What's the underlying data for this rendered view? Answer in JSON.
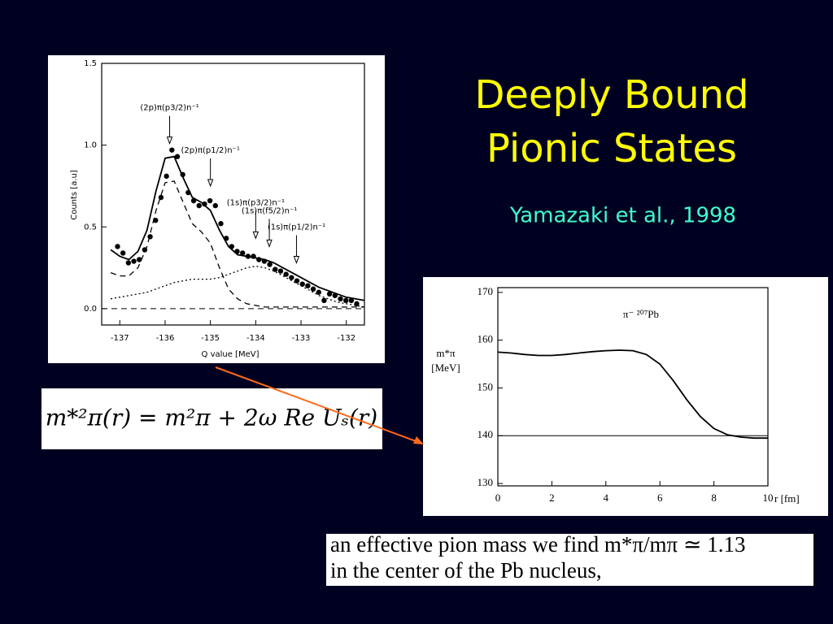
{
  "slide": {
    "title": [
      "Deeply Bound",
      "Pionic States"
    ],
    "subtitle": "Yamazaki et al., 1998"
  },
  "chart_data": [
    {
      "type": "line",
      "xlabel": "Q value [MeV]",
      "ylabel": "Counts [a.u]",
      "xlim": [
        -137.4,
        -131.6
      ],
      "ylim": [
        -0.1,
        1.5
      ],
      "xticks": [
        -137,
        -136,
        -135,
        -134,
        -133,
        -132
      ],
      "yticks": [
        {
          "value": 0,
          "label": "0.0"
        },
        0.5,
        {
          "value": 1,
          "label": "1.0"
        },
        1.5
      ],
      "hline": 0,
      "series": [
        {
          "kind": "points",
          "color": "#000000",
          "x": [
            -137.05,
            -136.93,
            -136.81,
            -136.69,
            -136.57,
            -136.45,
            -136.33,
            -136.21,
            -136.09,
            -135.97,
            -135.85,
            -135.73,
            -135.61,
            -135.49,
            -135.37,
            -135.25,
            -135.13,
            -135.01,
            -134.89,
            -134.77,
            -134.65,
            -134.53,
            -134.41,
            -134.29,
            -134.17,
            -134.05,
            -133.93,
            -133.81,
            -133.69,
            -133.57,
            -133.45,
            -133.33,
            -133.21,
            -133.09,
            -132.97,
            -132.85,
            -132.73,
            -132.61,
            -132.49,
            -132.37,
            -132.25,
            -132.13,
            -132.01,
            -131.89,
            -131.77
          ],
          "values": [
            0.38,
            0.34,
            0.28,
            0.29,
            0.3,
            0.36,
            0.44,
            0.54,
            0.68,
            0.81,
            0.97,
            0.93,
            0.82,
            0.71,
            0.66,
            0.63,
            0.64,
            0.66,
            0.63,
            0.52,
            0.43,
            0.38,
            0.35,
            0.34,
            0.32,
            0.32,
            0.3,
            0.29,
            0.27,
            0.24,
            0.23,
            0.21,
            0.19,
            0.17,
            0.15,
            0.14,
            0.12,
            0.1,
            0.05,
            0.09,
            0.08,
            0.06,
            0.05,
            0.05,
            0.03
          ]
        },
        {
          "kind": "solid",
          "color": "#000000",
          "x": [
            -137.2,
            -137.0,
            -136.8,
            -136.6,
            -136.4,
            -136.2,
            -136.0,
            -135.8,
            -135.6,
            -135.4,
            -135.2,
            -135.0,
            -134.8,
            -134.6,
            -134.4,
            -134.2,
            -134.0,
            -133.8,
            -133.6,
            -133.4,
            -133.2,
            -133.0,
            -132.8,
            -132.6,
            -132.4,
            -132.2,
            -132.0,
            -131.8,
            -131.6
          ],
          "values": [
            0.36,
            0.32,
            0.3,
            0.35,
            0.48,
            0.72,
            0.92,
            0.93,
            0.8,
            0.68,
            0.65,
            0.6,
            0.48,
            0.38,
            0.33,
            0.32,
            0.31,
            0.3,
            0.28,
            0.25,
            0.22,
            0.19,
            0.16,
            0.13,
            0.11,
            0.09,
            0.07,
            0.06,
            0.05
          ]
        },
        {
          "kind": "dashed",
          "color": "#000000",
          "x": [
            -137.2,
            -137.0,
            -136.8,
            -136.6,
            -136.4,
            -136.2,
            -136.0,
            -135.8,
            -135.6,
            -135.4,
            -135.2,
            -135.0,
            -134.8,
            -134.6,
            -134.4,
            -134.2,
            -134.0,
            -133.8,
            -133.6,
            -133.4,
            -133.2,
            -133.0,
            -132.8,
            -132.6,
            -132.4,
            -132.2,
            -132.0,
            -131.8,
            -131.6
          ],
          "values": [
            0.22,
            0.2,
            0.2,
            0.25,
            0.38,
            0.6,
            0.77,
            0.78,
            0.65,
            0.52,
            0.47,
            0.4,
            0.25,
            0.12,
            0.06,
            0.03,
            0.02,
            0.01,
            0.01,
            0.01,
            0.01,
            0.01,
            0.01,
            0.01,
            0.01,
            0.01,
            0.01,
            0.01,
            0.01
          ]
        },
        {
          "kind": "dotted",
          "color": "#000000",
          "x": [
            -137.2,
            -137.0,
            -136.8,
            -136.6,
            -136.4,
            -136.2,
            -136.0,
            -135.8,
            -135.6,
            -135.4,
            -135.2,
            -135.0,
            -134.8,
            -134.6,
            -134.4,
            -134.2,
            -134.0,
            -133.8,
            -133.6,
            -133.4,
            -133.2,
            -133.0,
            -132.8,
            -132.6,
            -132.4,
            -132.2,
            -132.0,
            -131.8,
            -131.6
          ],
          "values": [
            0.06,
            0.07,
            0.08,
            0.09,
            0.1,
            0.12,
            0.14,
            0.16,
            0.17,
            0.18,
            0.18,
            0.18,
            0.19,
            0.21,
            0.23,
            0.25,
            0.26,
            0.25,
            0.23,
            0.2,
            0.17,
            0.14,
            0.11,
            0.08,
            0.06,
            0.04,
            0.03,
            0.02,
            0.01
          ]
        }
      ],
      "annotations": [
        {
          "text": "(2p)π(p3/2)n⁻¹",
          "x": -135.9,
          "y": 1.0,
          "arrow": true
        },
        {
          "text": "(2p)π(p1/2)n⁻¹",
          "x": -135.0,
          "y": 0.74,
          "arrow": true
        },
        {
          "text": "(1s)π(p3/2)n⁻¹",
          "x": -134.0,
          "y": 0.42,
          "arrow": true
        },
        {
          "text": "(1s)π(f5/2)n⁻¹",
          "x": -133.7,
          "y": 0.37,
          "arrow": true
        },
        {
          "text": "(1s)π(p1/2)n⁻¹",
          "x": -133.1,
          "y": 0.27,
          "arrow": true
        }
      ]
    },
    {
      "type": "line",
      "xlabel": "r [fm]",
      "ylabel": [
        "m*π",
        "[MeV]"
      ],
      "xlim": [
        0,
        10
      ],
      "ylim": [
        129.5,
        171
      ],
      "xticks": [
        0,
        2,
        4,
        6,
        8,
        10
      ],
      "yticks": [
        130,
        140,
        150,
        160,
        170
      ],
      "hline": 140,
      "series": [
        {
          "kind": "solid",
          "color": "#000000",
          "x": [
            0,
            0.5,
            1,
            1.5,
            2,
            2.5,
            3,
            3.5,
            4,
            4.5,
            5,
            5.5,
            6,
            6.5,
            7,
            7.5,
            8,
            8.5,
            9,
            9.5,
            10
          ],
          "values": [
            157.5,
            157.3,
            157.0,
            156.8,
            156.8,
            157.0,
            157.3,
            157.6,
            157.8,
            157.9,
            157.8,
            157.0,
            155.0,
            151.5,
            147.5,
            144.0,
            141.5,
            140.2,
            139.7,
            139.5,
            139.5
          ]
        }
      ],
      "annotations": [
        {
          "text": "π⁻  ²⁰⁷Pb",
          "x": 5.3,
          "y": 165.2,
          "arrow": false
        }
      ]
    }
  ],
  "formula": "m*²π(r) = m²π + 2ω Re Uₛ(r)",
  "quote": [
    "an effective pion mass we find m*π/mπ ≃ 1.13",
    "in the center of the Pb nucleus,"
  ]
}
